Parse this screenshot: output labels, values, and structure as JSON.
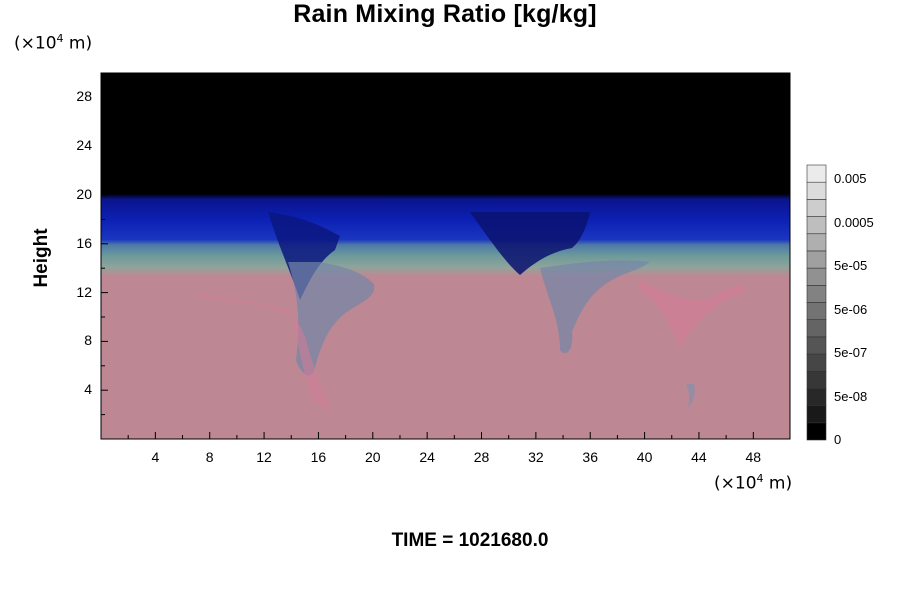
{
  "chart_data": {
    "type": "heatmap",
    "title": "Rain Mixing Ratio [kg/kg]",
    "ylabel": "Height",
    "xlabel": "",
    "x_unit": "(×10",
    "x_unit_exp": "4",
    "x_unit_tail": " m)",
    "y_unit": "(×10",
    "y_unit_exp": "4",
    "y_unit_tail": " m)",
    "x_ticks": [
      "4",
      "8",
      "12",
      "16",
      "20",
      "24",
      "28",
      "32",
      "36",
      "40",
      "44",
      "48"
    ],
    "y_ticks": [
      "4",
      "8",
      "12",
      "16",
      "20",
      "24",
      "28"
    ],
    "xlim": [
      0,
      50.7
    ],
    "ylim": [
      0,
      30
    ],
    "grid": false,
    "colorbar": {
      "labels": [
        "0.005",
        "0.0005",
        "5e-05",
        "5e-06",
        "5e-07",
        "5e-08",
        "0"
      ],
      "levels": 16
    },
    "layers": [
      {
        "name_visible": false,
        "from_height": 20,
        "to_height": 30,
        "color": "#000000"
      },
      {
        "name_visible": false,
        "from_height": 16,
        "to_height": 20,
        "color": "#0a1aa8"
      },
      {
        "name_visible": false,
        "from_height": 13.5,
        "to_height": 16,
        "color": "#5f8f9a"
      },
      {
        "name_visible": false,
        "from_height": 0,
        "to_height": 13.5,
        "color": "#bd8894"
      }
    ],
    "footer": "TIME = 1021680.0"
  }
}
